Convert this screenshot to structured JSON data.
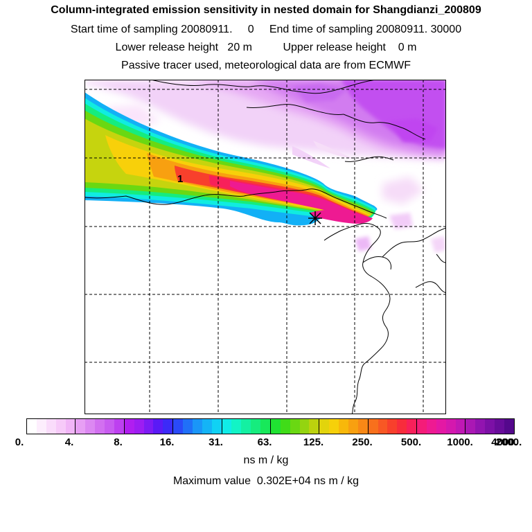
{
  "header": {
    "title": "Column-integrated emission sensitivity in nested domain for Shangdianzi_200809",
    "sampling": "Start time of sampling 20080911.     0     End time of sampling 20080911. 30000",
    "release": "Lower release height   20 m          Upper release height    0 m",
    "tracer": "Passive tracer used, meteorological data are from ECMWF"
  },
  "map": {
    "plume_label": "1",
    "receptor_marker": "receptor-star"
  },
  "colorbar": {
    "colors": [
      "#ffffff",
      "#fdeefd",
      "#fadcfb",
      "#f7caf9",
      "#f1b5f7",
      "#e79ff4",
      "#dc88f2",
      "#d270f0",
      "#c85cf0",
      "#bd40f0",
      "#b01ef0",
      "#9d1df2",
      "#7d1bf4",
      "#5a1af6",
      "#3c2af8",
      "#2a4af8",
      "#2070f8",
      "#1a96f8",
      "#14b4f6",
      "#10d2f4",
      "#10ece8",
      "#12f4c6",
      "#14f0a2",
      "#16ec7e",
      "#18e85a",
      "#20e232",
      "#40dc18",
      "#6ad812",
      "#94d410",
      "#bcd20e",
      "#e2d40c",
      "#f6d00a",
      "#f8b80a",
      "#f8a010",
      "#f88816",
      "#f8701c",
      "#f85824",
      "#f8402c",
      "#f82c3c",
      "#f8205a",
      "#f41c78",
      "#ee1a92",
      "#e418a4",
      "#d418ae",
      "#c018b4",
      "#aa18b4",
      "#9214b0",
      "#7c10a6",
      "#680c9a",
      "#54088c"
    ],
    "tick_labels": [
      "0.",
      "4.",
      "8.",
      "16.",
      "31.",
      "63.",
      "125.",
      "250.",
      "500.",
      "1000.",
      "2000.",
      "4000."
    ],
    "units": "ns m / kg"
  },
  "maximum": {
    "text": "Maximum value  0.302E+04 ns m / kg"
  }
}
